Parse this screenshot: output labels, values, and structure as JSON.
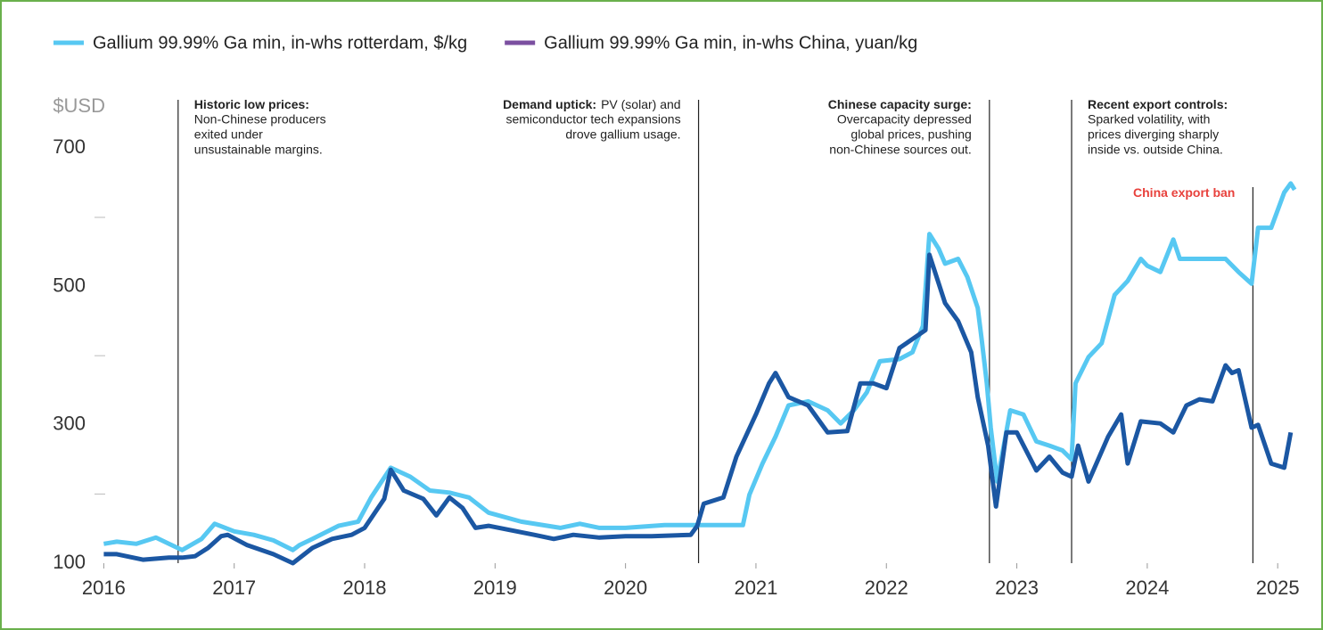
{
  "chart_data": {
    "type": "line",
    "y_axis_label": "$USD",
    "xlim": [
      2015.97,
      2025.32
    ],
    "xticks": [
      2016,
      2017,
      2018,
      2019,
      2020,
      2021,
      2022,
      2023,
      2024,
      2025
    ],
    "ylim": [
      100,
      770
    ],
    "yticks": [
      100,
      300,
      500,
      700
    ],
    "minor_yticks": [
      200,
      400,
      600
    ],
    "series": [
      {
        "name": "Gallium 99.99% Ga min, in-whs rotterdam, $/kg",
        "color": "#57c8f2",
        "legend_color": "#57c8f2",
        "x": [
          2016.0,
          2016.1,
          2016.25,
          2016.4,
          2016.5,
          2016.6,
          2016.75,
          2016.85,
          2017.0,
          2017.15,
          2017.3,
          2017.45,
          2017.5,
          2017.6,
          2017.8,
          2017.95,
          2018.05,
          2018.2,
          2018.35,
          2018.5,
          2018.65,
          2018.8,
          2018.95,
          2019.2,
          2019.5,
          2019.65,
          2019.8,
          2020.0,
          2020.3,
          2020.6,
          2020.9,
          2020.95,
          2021.05,
          2021.15,
          2021.25,
          2021.4,
          2021.55,
          2021.65,
          2021.75,
          2021.85,
          2021.95,
          2022.1,
          2022.2,
          2022.28,
          2022.33,
          2022.4,
          2022.45,
          2022.55,
          2022.62,
          2022.7,
          2022.73,
          2022.77,
          2022.8,
          2022.85,
          2022.95,
          2023.05,
          2023.15,
          2023.25,
          2023.35,
          2023.42,
          2023.45,
          2023.55,
          2023.65,
          2023.75,
          2023.85,
          2023.95,
          2024.0,
          2024.1,
          2024.2,
          2024.25,
          2024.4,
          2024.6,
          2024.7,
          2024.8,
          2024.85,
          2024.95,
          2025.05,
          2025.1,
          2025.13
        ],
        "values": [
          128,
          131,
          128,
          137,
          128,
          119,
          135,
          157,
          146,
          141,
          133,
          119,
          126,
          135,
          154,
          160,
          195,
          238,
          225,
          205,
          202,
          195,
          173,
          160,
          151,
          157,
          151,
          151,
          155,
          155,
          155,
          199,
          244,
          283,
          328,
          334,
          321,
          302,
          321,
          347,
          392,
          395,
          405,
          443,
          576,
          555,
          533,
          540,
          514,
          469,
          424,
          360,
          296,
          218,
          321,
          315,
          276,
          270,
          263,
          250,
          360,
          398,
          418,
          488,
          508,
          540,
          530,
          521,
          568,
          540,
          540,
          540,
          521,
          504,
          585,
          585,
          636,
          649,
          640
        ]
      },
      {
        "name": "Gallium 99.99% Ga min, in-whs China, yuan/kg",
        "color": "#1b57a3",
        "legend_color": "#7b4fa0",
        "x": [
          2016.0,
          2016.1,
          2016.3,
          2016.5,
          2016.6,
          2016.7,
          2016.8,
          2016.9,
          2016.95,
          2017.1,
          2017.3,
          2017.45,
          2017.6,
          2017.75,
          2017.9,
          2018.0,
          2018.15,
          2018.2,
          2018.3,
          2018.45,
          2018.55,
          2018.65,
          2018.75,
          2018.85,
          2018.95,
          2019.3,
          2019.45,
          2019.6,
          2019.8,
          2020.0,
          2020.2,
          2020.5,
          2020.55,
          2020.6,
          2020.75,
          2020.85,
          2021.0,
          2021.1,
          2021.15,
          2021.25,
          2021.4,
          2021.55,
          2021.7,
          2021.8,
          2021.9,
          2022.0,
          2022.1,
          2022.3,
          2022.33,
          2022.45,
          2022.55,
          2022.65,
          2022.7,
          2022.78,
          2022.84,
          2022.92,
          2023.0,
          2023.15,
          2023.25,
          2023.35,
          2023.42,
          2023.47,
          2023.55,
          2023.7,
          2023.8,
          2023.85,
          2023.95,
          2024.1,
          2024.2,
          2024.3,
          2024.4,
          2024.5,
          2024.6,
          2024.65,
          2024.7,
          2024.8,
          2024.85,
          2024.95,
          2025.05,
          2025.1
        ],
        "values": [
          113,
          113,
          105,
          108,
          108,
          110,
          122,
          139,
          141,
          126,
          113,
          100,
          122,
          135,
          141,
          151,
          193,
          235,
          205,
          193,
          169,
          195,
          180,
          151,
          154,
          141,
          135,
          141,
          137,
          139,
          139,
          141,
          154,
          186,
          195,
          254,
          315,
          360,
          375,
          340,
          328,
          289,
          291,
          360,
          360,
          353,
          411,
          437,
          546,
          476,
          450,
          405,
          340,
          270,
          182,
          289,
          289,
          234,
          254,
          231,
          225,
          270,
          218,
          283,
          315,
          244,
          305,
          302,
          289,
          328,
          337,
          334,
          386,
          375,
          379,
          296,
          300,
          244,
          238,
          289
        ]
      }
    ],
    "annotations": [
      {
        "x": 2016.57,
        "align": "left",
        "title": "Historic low prices:",
        "title_inline": false,
        "lines": [
          "Non-Chinese producers",
          "exited under",
          "unsustainable margins."
        ]
      },
      {
        "x": 2020.56,
        "align": "right",
        "title": "Demand uptick:",
        "title_inline": true,
        "lines": [
          "PV (solar) and",
          "semiconductor tech expansions",
          "drove gallium usage."
        ]
      },
      {
        "x": 2022.79,
        "align": "right",
        "title": "Chinese capacity surge:",
        "title_inline": false,
        "lines": [
          "Overcapacity depressed",
          "global prices, pushing",
          "non-Chinese sources out."
        ]
      },
      {
        "x": 2023.42,
        "align": "left",
        "title": "Recent export controls:",
        "title_inline": false,
        "lines": [
          "Sparked volatility, with",
          "prices diverging sharply",
          "inside vs. outside China."
        ]
      },
      {
        "x": 2024.81,
        "align": "right",
        "title": "China export ban",
        "title_inline": false,
        "lines": [],
        "color": "#e8413c"
      }
    ]
  }
}
